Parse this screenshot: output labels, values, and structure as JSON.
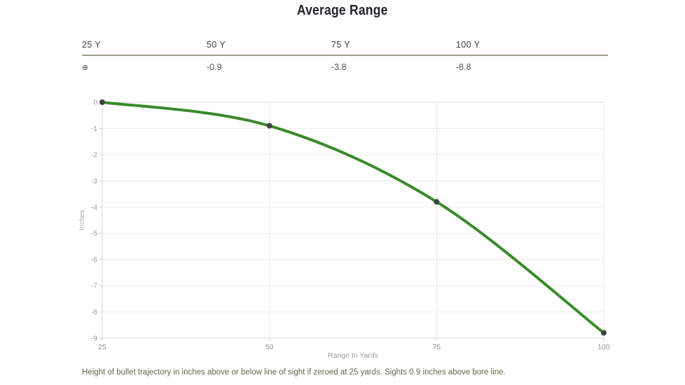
{
  "page": {
    "title": "Average Range",
    "caption": "Height of bullet trajectory in inches above or below line of sight if zeroed at 25 yards. Sights 0.9 inches above bore line."
  },
  "table": {
    "headers": [
      "25 Y",
      "50 Y",
      "75 Y",
      "100 Y"
    ],
    "values": [
      "",
      "-0.9",
      "-3.8",
      "-8.8"
    ],
    "zero_icon": "⊕"
  },
  "chart_data": {
    "type": "line",
    "x": [
      25,
      50,
      75,
      100
    ],
    "series": [
      {
        "name": "Average Range",
        "values": [
          0,
          -0.9,
          -3.8,
          -8.8
        ]
      }
    ],
    "title": "Average Range",
    "xlabel": "Range In Yards",
    "ylabel": "Inches",
    "xlim": [
      25,
      100
    ],
    "ylim": [
      -9,
      0
    ],
    "xticks": [
      25,
      50,
      75,
      100
    ],
    "yticks": [
      0,
      -1,
      -2,
      -3,
      -4,
      -5,
      -6,
      -7,
      -8,
      -9
    ],
    "grid": true,
    "legend": false,
    "line_color": "#3a8a2b",
    "marker_color": "#3f4245"
  },
  "colors": {
    "accent_green": "#3a8a2b",
    "table_rule": "#a29d82",
    "grid_line": "#ececec",
    "zero_line": "#d7d7d7",
    "axis_line": "#d6d6d6",
    "tick_label": "#979797",
    "caption_text": "#666650"
  }
}
